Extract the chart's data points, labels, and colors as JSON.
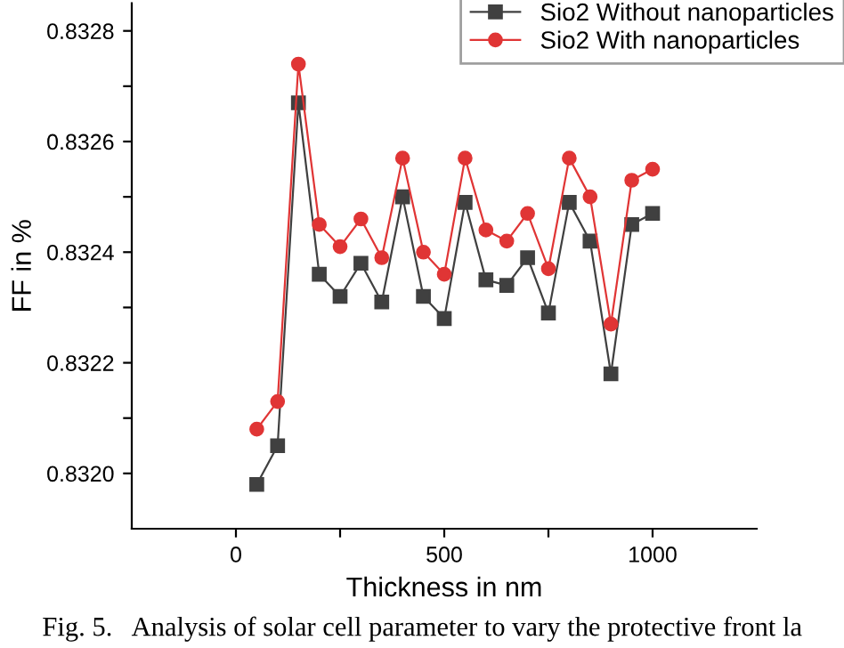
{
  "chart_data": {
    "type": "line",
    "xlabel": "Thickness in nm",
    "ylabel": "FF in %",
    "x": [
      50,
      100,
      150,
      200,
      250,
      300,
      350,
      400,
      450,
      500,
      550,
      600,
      650,
      700,
      750,
      800,
      850,
      900,
      950,
      1000
    ],
    "series": [
      {
        "name": "Sio2 Without nanoparticles",
        "color": "#404040",
        "marker": "square",
        "values": [
          0.83198,
          0.83205,
          0.83267,
          0.83236,
          0.83232,
          0.83238,
          0.83231,
          0.8325,
          0.83232,
          0.83228,
          0.83249,
          0.83235,
          0.83234,
          0.83239,
          0.83229,
          0.83249,
          0.83242,
          0.83218,
          0.83245,
          0.83247
        ]
      },
      {
        "name": "Sio2 With nanoparticles",
        "color": "#e03535",
        "marker": "circle",
        "values": [
          0.83208,
          0.83213,
          0.83274,
          0.83245,
          0.83241,
          0.83246,
          0.83239,
          0.83257,
          0.8324,
          0.83236,
          0.83257,
          0.83244,
          0.83242,
          0.83247,
          0.83237,
          0.83257,
          0.8325,
          0.83227,
          0.83253,
          0.83255
        ]
      }
    ],
    "xlim": [
      -250,
      1250
    ],
    "xticks": [
      0,
      {
        "value": 250,
        "label": null
      },
      500,
      {
        "value": 750,
        "label": null
      },
      1000
    ],
    "ylim": [
      0.8319,
      0.83285
    ],
    "yticks": [
      {
        "value": 0.832,
        "label": "0.8320"
      },
      {
        "value": 0.8321,
        "label": null
      },
      {
        "value": 0.8322,
        "label": "0.8322"
      },
      {
        "value": 0.8323,
        "label": null
      },
      {
        "value": 0.8324,
        "label": "0.8324"
      },
      {
        "value": 0.8325,
        "label": null
      },
      {
        "value": 0.8326,
        "label": "0.8326"
      },
      {
        "value": 0.8327,
        "label": null
      },
      {
        "value": 0.8328,
        "label": "0.8328"
      }
    ],
    "legend": "top right",
    "grid": false,
    "annotations": [
      "Fig. 5.   Analysis of solar cell parameter to vary the protective front la"
    ]
  }
}
